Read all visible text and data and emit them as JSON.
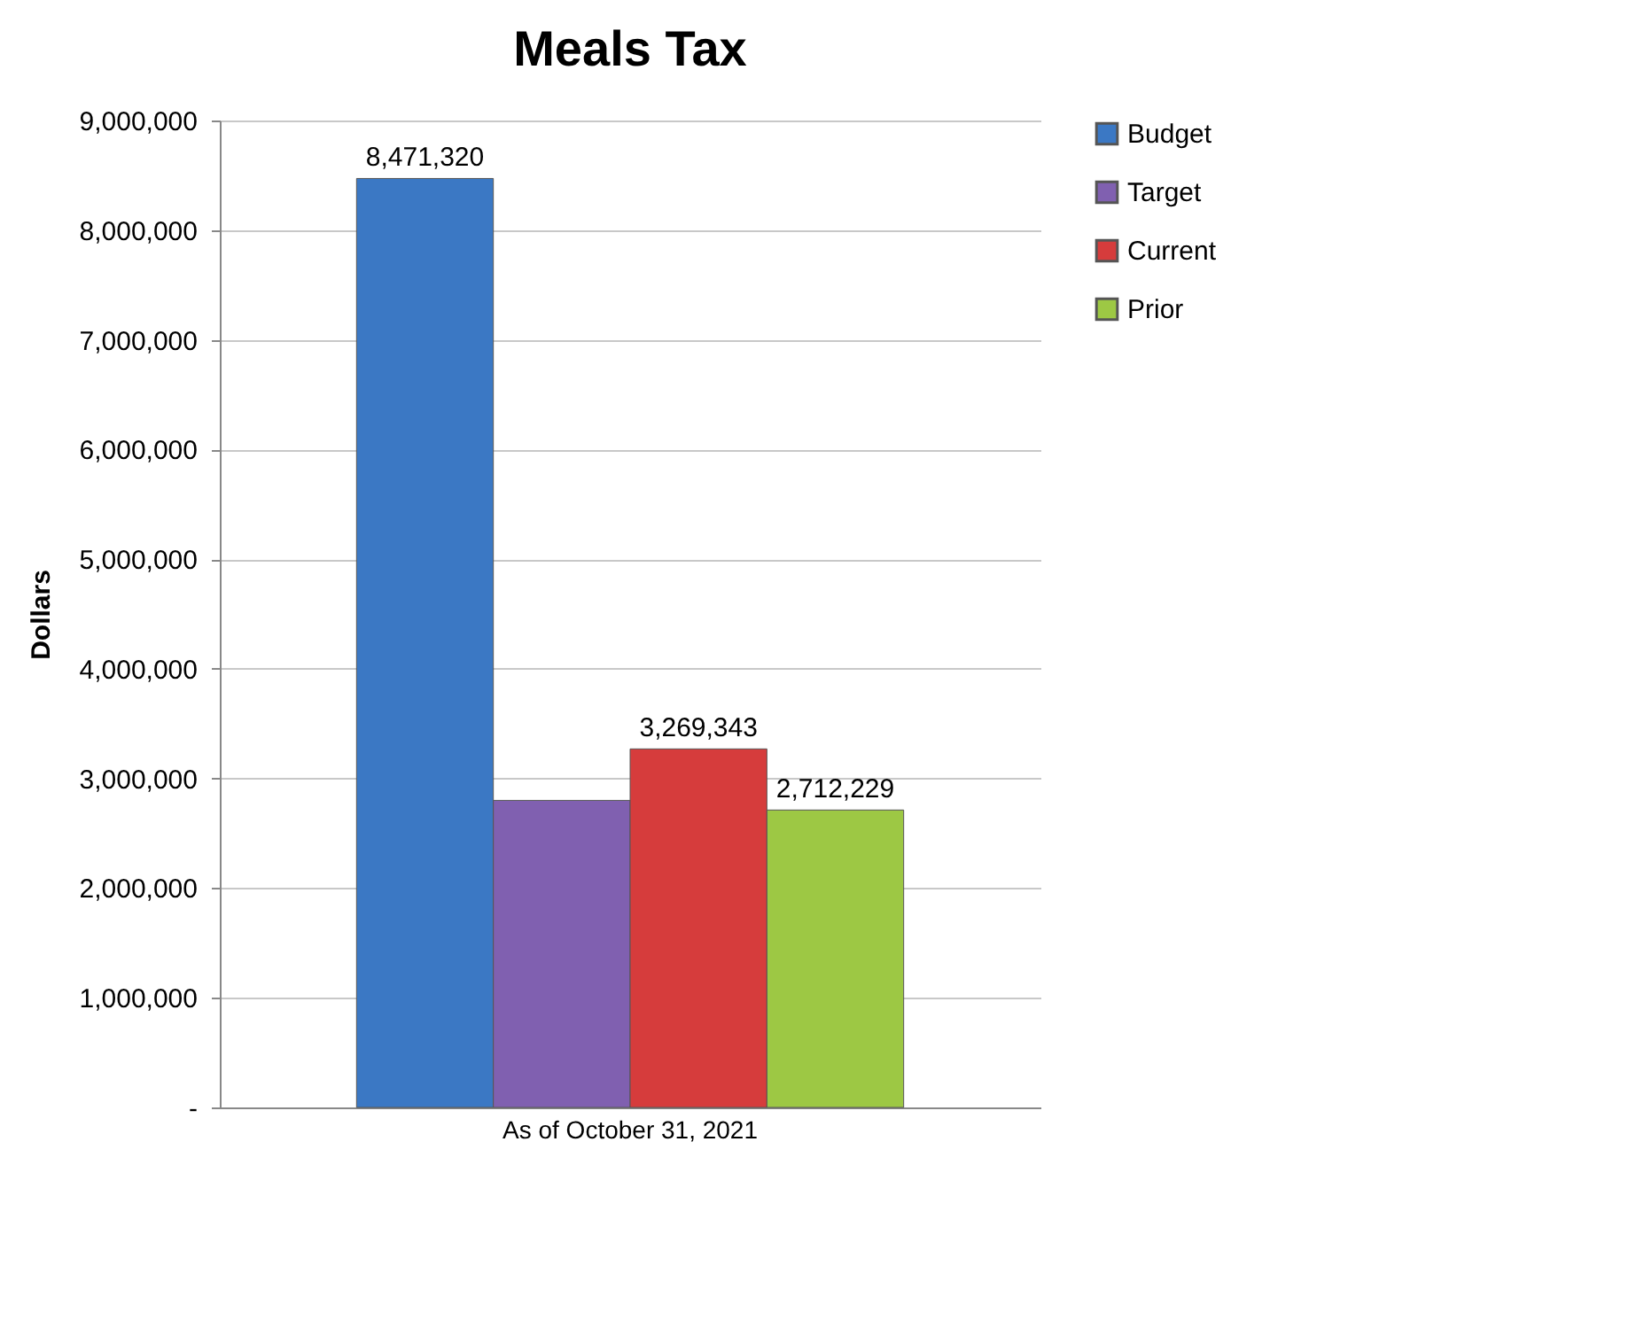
{
  "chart_data": {
    "type": "bar",
    "title": "Meals Tax",
    "ylabel": "Dollars",
    "categories": [
      "As of October 31, 2021"
    ],
    "series": [
      {
        "name": "Budget",
        "color": "#3b78c4",
        "values": [
          8471320
        ],
        "value_labels": [
          "8,471,320"
        ]
      },
      {
        "name": "Target",
        "color": "#8060b0",
        "values": [
          2800000
        ],
        "value_labels": [
          null
        ]
      },
      {
        "name": "Current",
        "color": "#d63c3c",
        "values": [
          3269343
        ],
        "value_labels": [
          "3,269,343"
        ]
      },
      {
        "name": "Prior",
        "color": "#9dc844",
        "values": [
          2712229
        ],
        "value_labels": [
          "2,712,229"
        ]
      }
    ],
    "ylim": [
      0,
      9000000
    ],
    "yticks": [
      {
        "value": 0,
        "label": "-"
      },
      {
        "value": 1000000,
        "label": "1,000,000"
      },
      {
        "value": 2000000,
        "label": "2,000,000"
      },
      {
        "value": 3000000,
        "label": "3,000,000"
      },
      {
        "value": 4000000,
        "label": "4,000,000"
      },
      {
        "value": 5000000,
        "label": "5,000,000"
      },
      {
        "value": 6000000,
        "label": "6,000,000"
      },
      {
        "value": 7000000,
        "label": "7,000,000"
      },
      {
        "value": 8000000,
        "label": "8,000,000"
      },
      {
        "value": 9000000,
        "label": "9,000,000"
      }
    ],
    "grid": "y",
    "legend": "right"
  }
}
